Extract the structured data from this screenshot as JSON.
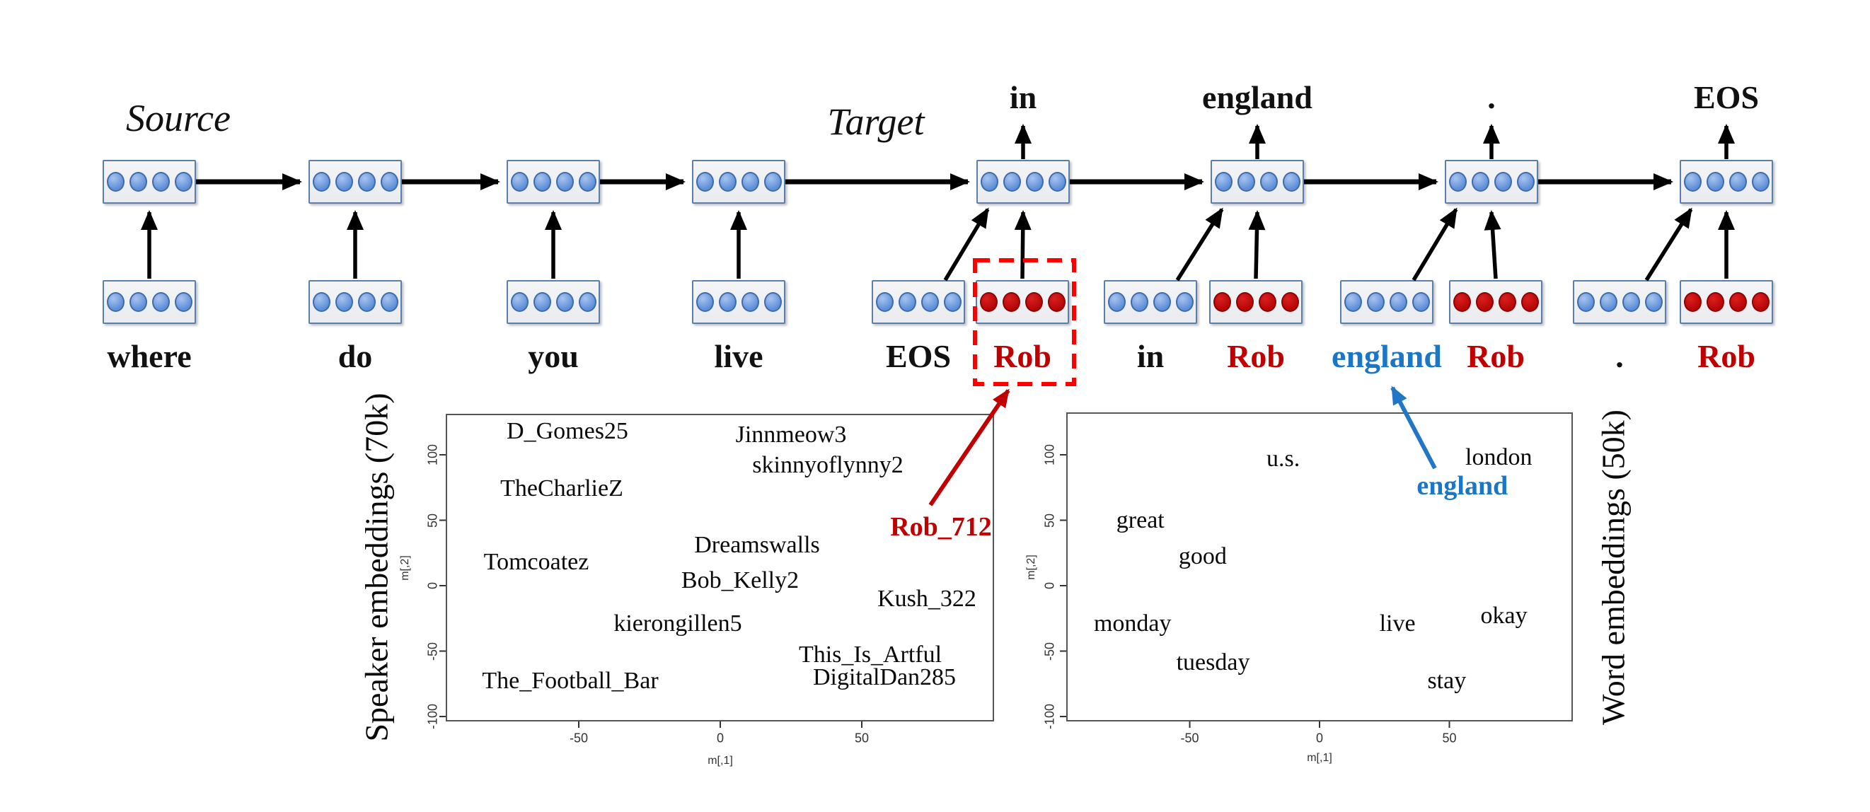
{
  "figure": {
    "source_label": "Source",
    "target_label": "Target",
    "encoder_tokens": [
      "where",
      "do",
      "you",
      "live"
    ],
    "decoder_steps": [
      {
        "input": "EOS",
        "input_color": "black",
        "persona": "Rob",
        "persona_color": "red",
        "output": "in",
        "highlight_persona": true
      },
      {
        "input": "in",
        "input_color": "black",
        "persona": "Rob",
        "persona_color": "red",
        "output": "england",
        "highlight_persona": false
      },
      {
        "input": "england",
        "input_color": "blue",
        "persona": "Rob",
        "persona_color": "red",
        "output": ".",
        "highlight_persona": false
      },
      {
        "input": ".",
        "input_color": "black",
        "persona": "Rob",
        "persona_color": "red",
        "output": "EOS",
        "highlight_persona": false
      }
    ],
    "colors": {
      "state_dot_blue": "#5f8fd8",
      "persona_dot_red": "#b60404",
      "word_red": "#c00000",
      "word_blue": "#1b76c5",
      "highlight_dash_red": "#ff0000",
      "annotation_arrow_red": "#c00000",
      "annotation_arrow_blue": "#2176c7",
      "box_border": "#5b7fa6",
      "arrow_black": "#000000"
    }
  },
  "chart_data": [
    {
      "type": "scatter",
      "title": "Speaker embeddings (70k)",
      "xlabel": "m[,1]",
      "ylabel": "m[,2]",
      "x_ticks": [
        -50,
        0,
        50
      ],
      "y_ticks": [
        100,
        50,
        0,
        -50,
        -100
      ],
      "xlim": [
        -97,
        97
      ],
      "ylim": [
        -104,
        131
      ],
      "grid": false,
      "points": [
        {
          "label": "D_Gomes25",
          "x": -54,
          "y": 118
        },
        {
          "label": "Jinnmeow3",
          "x": 25,
          "y": 115
        },
        {
          "label": "skinnyoflynny2",
          "x": 38,
          "y": 92
        },
        {
          "label": "TheCharlieZ",
          "x": -56,
          "y": 74
        },
        {
          "label": "Tomcoatez",
          "x": -65,
          "y": 18
        },
        {
          "label": "Dreamswalls",
          "x": 13,
          "y": 31
        },
        {
          "label": "Bob_Kelly2",
          "x": 7,
          "y": 4
        },
        {
          "label": "Kush_322",
          "x": 73,
          "y": -10
        },
        {
          "label": "kierongillen5",
          "x": -15,
          "y": -29
        },
        {
          "label": "This_Is_Artful",
          "x": 53,
          "y": -53
        },
        {
          "label": "DigitalDan285",
          "x": 58,
          "y": -70
        },
        {
          "label": "The_Football_Bar",
          "x": -53,
          "y": -73
        },
        {
          "label": "Rob_712",
          "x": 78,
          "y": 45,
          "color": "#c00000",
          "bold": true
        }
      ],
      "annotation": {
        "text": "arrow from Rob_712 to highlighted Rob persona input",
        "color": "#c00000"
      }
    },
    {
      "type": "scatter",
      "title": "Word embeddings (50k)",
      "xlabel": "m[,1]",
      "ylabel": "m[,2]",
      "x_ticks": [
        -50,
        0,
        50
      ],
      "y_ticks": [
        100,
        50,
        0,
        -50,
        -100
      ],
      "xlim": [
        -98,
        98
      ],
      "ylim": [
        -104,
        131
      ],
      "grid": false,
      "points": [
        {
          "label": "u.s.",
          "x": -14,
          "y": 97
        },
        {
          "label": "london",
          "x": 69,
          "y": 98
        },
        {
          "label": "england",
          "x": 55,
          "y": 76,
          "color": "#1b76c5",
          "bold": true
        },
        {
          "label": "great",
          "x": -69,
          "y": 50
        },
        {
          "label": "good",
          "x": -45,
          "y": 22
        },
        {
          "label": "monday",
          "x": -72,
          "y": -29
        },
        {
          "label": "tuesday",
          "x": -41,
          "y": -59
        },
        {
          "label": "live",
          "x": 30,
          "y": -29
        },
        {
          "label": "okay",
          "x": 71,
          "y": -23
        },
        {
          "label": "stay",
          "x": 49,
          "y": -73
        }
      ],
      "annotation": {
        "text": "arrow from england embedding to england target input word",
        "color": "#2176c7"
      }
    }
  ]
}
